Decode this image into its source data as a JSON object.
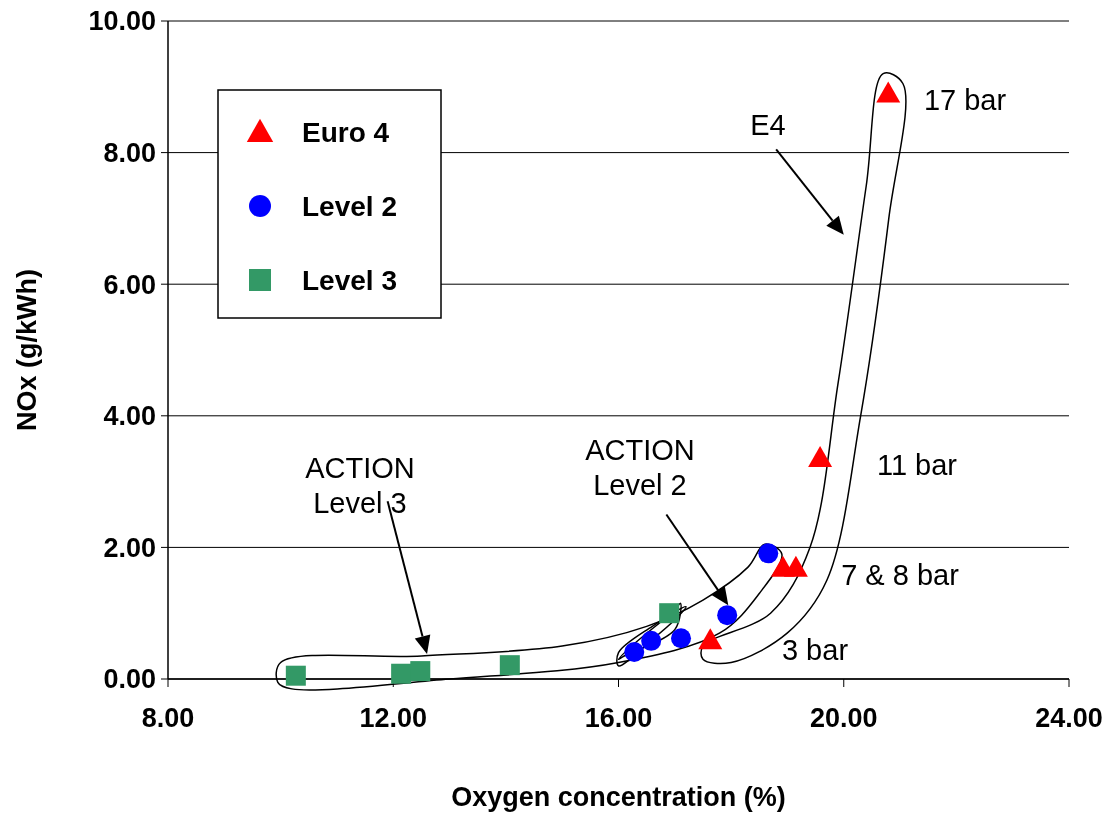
{
  "chart_data": {
    "type": "scatter",
    "xlabel": "Oxygen concentration (%)",
    "ylabel": "NOx (g/kWh)",
    "xlim": [
      8,
      24
    ],
    "xticks": [
      {
        "value": 8,
        "label": "8.00"
      },
      {
        "value": 12,
        "label": "12.00"
      },
      {
        "value": 16,
        "label": "16.00"
      },
      {
        "value": 20,
        "label": "20.00"
      },
      {
        "value": 24,
        "label": "24.00"
      }
    ],
    "ylim": [
      0,
      10
    ],
    "yticks": [
      {
        "value": 0,
        "label": "0.00"
      },
      {
        "value": 2,
        "label": "2.00"
      },
      {
        "value": 4,
        "label": "4.00"
      },
      {
        "value": 6,
        "label": "6.00"
      },
      {
        "value": 8,
        "label": "8.00"
      },
      {
        "value": 10,
        "label": "10.00"
      }
    ],
    "grid": "y",
    "legend": "top left",
    "series": [
      {
        "name": "Euro 4",
        "color": "#ff0000",
        "marker": "triangle",
        "x": [
          17.63,
          18.92,
          19.15,
          19.58,
          20.79
        ],
        "values": [
          0.59,
          1.69,
          1.69,
          3.36,
          8.9
        ]
      },
      {
        "name": "Level 2",
        "color": "#0000ff",
        "marker": "circle",
        "x": [
          16.28,
          16.58,
          17.11,
          17.93,
          18.66
        ],
        "values": [
          0.41,
          0.58,
          0.62,
          0.97,
          1.91
        ]
      },
      {
        "name": "Level 3",
        "color": "#339966",
        "marker": "square",
        "x": [
          10.27,
          12.14,
          12.48,
          14.07,
          16.9
        ],
        "values": [
          0.05,
          0.08,
          0.12,
          0.21,
          1.0
        ]
      }
    ],
    "annotations": [
      "17 bar",
      "E4",
      "11 bar",
      "7 & 8 bar",
      "3 bar",
      "ACTION\nLevel 2",
      "ACTION\nLevel 3"
    ]
  }
}
